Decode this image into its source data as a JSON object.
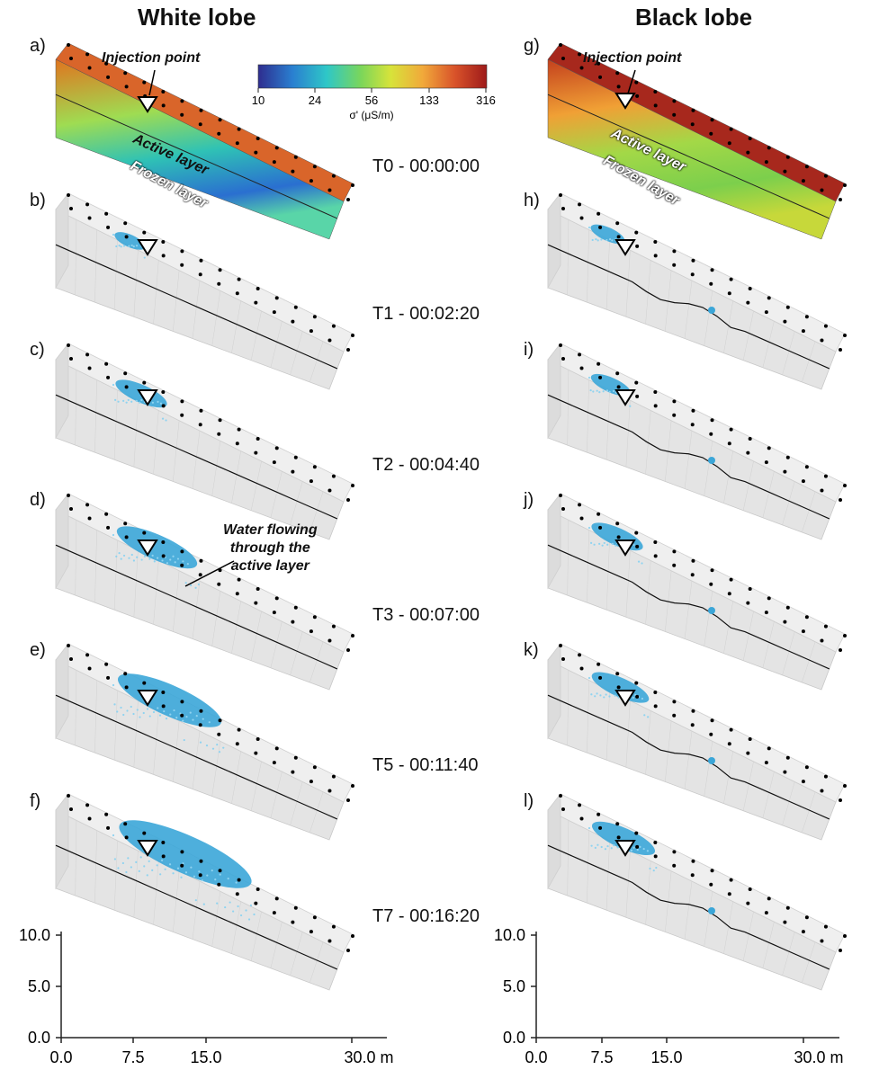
{
  "columns": [
    {
      "title": "White lobe",
      "panel_labels": [
        "a)",
        "b)",
        "c)",
        "d)",
        "e)",
        "f)"
      ]
    },
    {
      "title": "Black lobe",
      "panel_labels": [
        "g)",
        "h)",
        "i)",
        "j)",
        "k)",
        "l)"
      ]
    }
  ],
  "times": [
    "T0 - 00:00:00",
    "T1 - 00:02:20",
    "T2 - 00:04:40",
    "T3 - 00:07:00",
    "T5 - 00:11:40",
    "T7 - 00:16:20"
  ],
  "annotations": {
    "injection_point": "Injection point",
    "active_layer": "Active layer",
    "frozen_layer": "Frozen layer",
    "water_flow": [
      "Water flowing",
      "through the",
      "active layer"
    ]
  },
  "colorbar": {
    "ticks": [
      "10",
      "24",
      "56",
      "133",
      "316"
    ],
    "label": "σ' (μS/m)",
    "colors": [
      "#2e2d8f",
      "#2a7fd0",
      "#2ec7c7",
      "#7bd65a",
      "#d7e33a",
      "#f1a93a",
      "#d9532a",
      "#9e1a1a"
    ]
  },
  "axes": {
    "y_ticks": [
      "10.0",
      "5.0",
      "0.0"
    ],
    "x_ticks": [
      "0.0",
      "7.5",
      "15.0",
      "30.0 m"
    ]
  },
  "colors": {
    "water": "#3ba6d8",
    "mesh": "#e4e4e4",
    "electrode": "#000000"
  },
  "infiltration_extent": {
    "white": [
      0,
      0.12,
      0.3,
      0.55,
      0.75,
      1.0
    ],
    "black": [
      0,
      0.15,
      0.2,
      0.3,
      0.35,
      0.4
    ]
  }
}
